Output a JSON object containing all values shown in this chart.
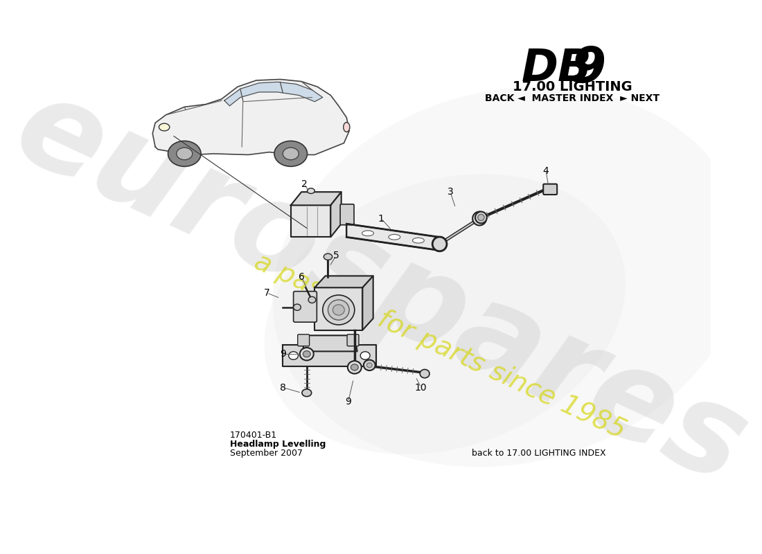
{
  "title_db9_text": "DB",
  "title_9_text": "9",
  "title_section": "17.00 LIGHTING",
  "nav_text": "BACK ◄  MASTER INDEX  ► NEXT",
  "bottom_left_code": "170401-B1",
  "bottom_left_line1": "Headlamp Levelling",
  "bottom_left_line2": "September 2007",
  "bottom_right_text": "back to 17.00 LIGHTING INDEX",
  "watermark_line1": "eurospares",
  "watermark_line2": "a passion for parts since 1985",
  "bg_color": "#ffffff",
  "draw_color": "#333333",
  "part_color": "#e8e8e8",
  "part_edge_color": "#222222"
}
